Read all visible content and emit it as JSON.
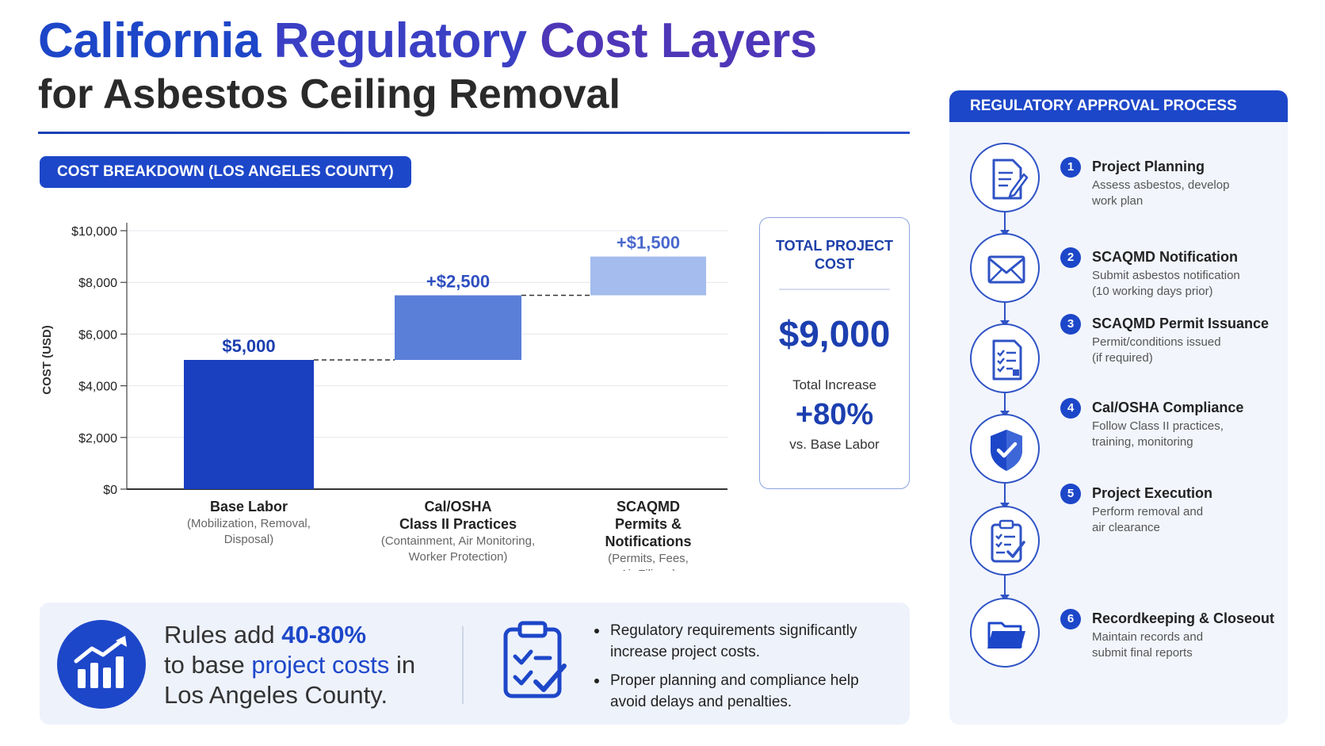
{
  "header": {
    "title_words": [
      "California",
      "Regulatory",
      "Cost Layers"
    ],
    "subtitle": "for Asbestos Ceiling Removal"
  },
  "cost_section": {
    "label": "COST BREAKDOWN (LOS ANGELES COUNTY)"
  },
  "colors": {
    "primary": "#1d47c9",
    "bar_base": "#1a3fbf",
    "bar_osha": "#5a7fd9",
    "bar_scaqmd": "#a4bcee",
    "panel_bg": "#eef2fb"
  },
  "chart_data": {
    "type": "bar",
    "subtype": "waterfall",
    "categories": [
      "Base Labor",
      "Cal/OSHA Class II Practices",
      "SCAQMD Permits & Notifications"
    ],
    "category_lines": [
      [
        "Base Labor"
      ],
      [
        "Cal/OSHA",
        "Class II Practices"
      ],
      [
        "SCAQMD",
        "Permits &",
        "Notifications"
      ]
    ],
    "category_notes": [
      [
        "(Mobilization, Removal,",
        "Disposal)"
      ],
      [
        "(Containment, Air Monitoring,",
        "Worker Protection)"
      ],
      [
        "(Permits, Fees,",
        "Air Filings)"
      ]
    ],
    "values": [
      5000,
      2500,
      1500
    ],
    "starts": [
      0,
      5000,
      7500
    ],
    "value_labels": [
      "$5,000",
      "+$2,500",
      "+$1,500"
    ],
    "ylabel": "COST (USD)",
    "ylim": [
      0,
      10000
    ],
    "y_ticks": [
      0,
      2000,
      4000,
      6000,
      8000,
      10000
    ],
    "y_tick_labels": [
      "$0",
      "$2,000",
      "$4,000",
      "$6,000",
      "$8,000",
      "$10,000"
    ],
    "grid": true,
    "connectors": "dashed"
  },
  "total_box": {
    "title_lines": [
      "TOTAL PROJECT",
      "COST"
    ],
    "value": "$9,000",
    "increase_label": "Total Increase",
    "increase_value": "+80%",
    "vs_label": "vs. Base Labor"
  },
  "bottom_panel": {
    "icon": "bar-chart-up-icon",
    "stat_line1_prefix": "Rules add ",
    "stat_line1_highlight": "40-80%",
    "stat_line2_prefix": "to base ",
    "stat_line2_highlight": "project costs",
    "stat_line2_suffix": " in",
    "stat_line3": "Los Angeles County.",
    "checklist_icon": "clipboard-checklist-icon",
    "bullets": [
      [
        "Regulatory requirements significantly",
        "increase project costs."
      ],
      [
        "Proper planning and compliance help",
        "avoid delays and penalties."
      ]
    ]
  },
  "process": {
    "heading": "REGULATORY APPROVAL PROCESS",
    "steps": [
      {
        "num": "1",
        "icon": "document-edit-icon",
        "title": "Project Planning",
        "desc": [
          "Assess asbestos, develop",
          "work plan"
        ]
      },
      {
        "num": "2",
        "icon": "envelope-icon",
        "title": "SCAQMD Notification",
        "desc": [
          "Submit asbestos notification",
          "(10 working days prior)"
        ]
      },
      {
        "num": "3",
        "icon": "checklist-document-icon",
        "title": "SCAQMD Permit Issuance",
        "desc": [
          "Permit/conditions issued",
          "(if required)"
        ]
      },
      {
        "num": "4",
        "icon": "shield-check-icon",
        "title": "Cal/OSHA Compliance",
        "desc": [
          "Follow Class II practices,",
          "training, monitoring"
        ]
      },
      {
        "num": "5",
        "icon": "clipboard-check-icon",
        "title": "Project Execution",
        "desc": [
          "Perform removal and",
          "air clearance"
        ]
      },
      {
        "num": "6",
        "icon": "folder-icon",
        "title": "Recordkeeping & Closeout",
        "desc": [
          "Maintain records and",
          "submit final reports"
        ]
      }
    ]
  }
}
